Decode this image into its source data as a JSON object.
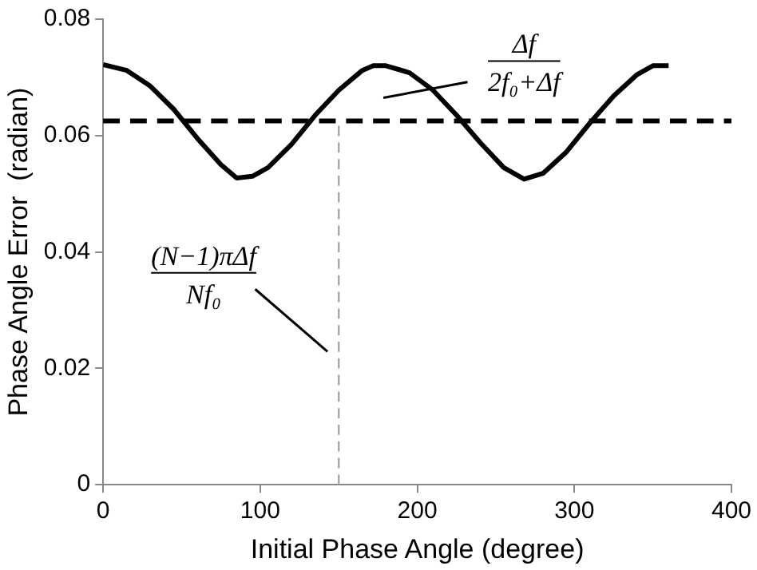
{
  "chart_data": {
    "type": "line",
    "xlabel": "Initial Phase Angle (degree)",
    "ylabel": "Phase Angle Error  (radian)",
    "x": [
      0,
      15,
      30,
      45,
      60,
      75,
      85,
      95,
      105,
      120,
      135,
      150,
      165,
      172,
      180,
      195,
      210,
      225,
      240,
      255,
      268,
      280,
      295,
      310,
      325,
      340,
      350,
      360
    ],
    "series": [
      {
        "color": "#000000",
        "values": [
          0.0722,
          0.0712,
          0.0685,
          0.0645,
          0.0595,
          0.055,
          0.0527,
          0.053,
          0.0545,
          0.0585,
          0.0635,
          0.0678,
          0.0712,
          0.072,
          0.072,
          0.0708,
          0.0678,
          0.0635,
          0.0588,
          0.0545,
          0.0525,
          0.0535,
          0.0572,
          0.0622,
          0.0668,
          0.0705,
          0.072,
          0.072
        ]
      }
    ],
    "xlim": [
      0,
      400
    ],
    "xticks": [
      0,
      100,
      200,
      300,
      400
    ],
    "ylim": [
      0,
      0.08
    ],
    "yticks": [
      0,
      0.02,
      0.04,
      0.06,
      0.08
    ],
    "grid": false,
    "legend": false,
    "marker": "none",
    "line_style": "solid",
    "ref_lines": [
      {
        "axis": "y",
        "value": 0.0625,
        "color": "#000000",
        "line_style": "dashed"
      },
      {
        "axis": "x",
        "value": 150,
        "color": "#999999",
        "line_style": "dashed"
      }
    ],
    "annotations": [
      "Δf\n2f₀+Δf",
      "(N−1)πΔf\nNf₀"
    ]
  }
}
